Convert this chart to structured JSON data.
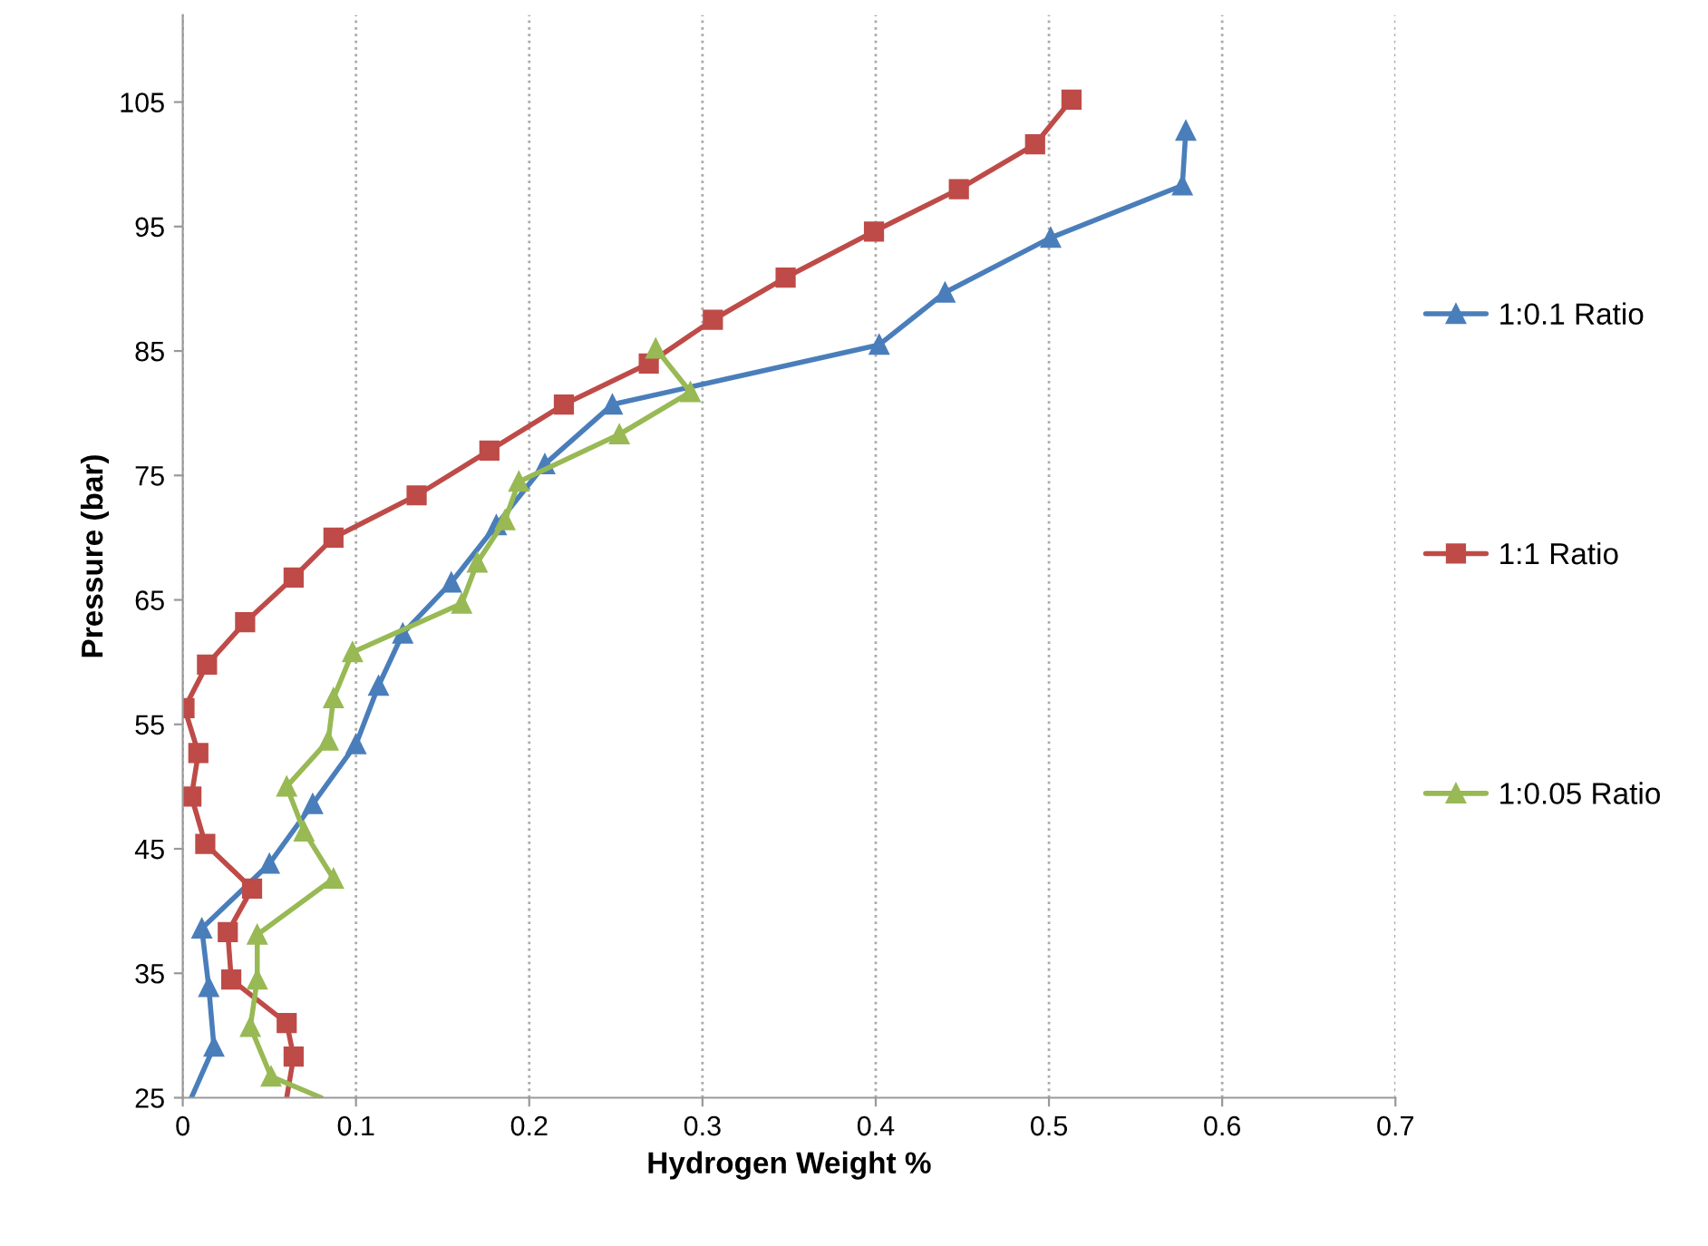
{
  "chart_data": {
    "type": "line",
    "xlabel": "Hydrogen Weight %",
    "ylabel": "Pressure (bar)",
    "xlim": [
      0,
      0.7
    ],
    "xticks": [
      0,
      0.1,
      0.2,
      0.3,
      0.4,
      0.5,
      0.6,
      0.7
    ],
    "ylim": [
      25,
      112
    ],
    "yticks": [
      25,
      35,
      45,
      55,
      65,
      75,
      85,
      95,
      105
    ],
    "grid": "x",
    "legend": "right",
    "line_style": "solid",
    "series": [
      {
        "name": "1:0.1 Ratio",
        "color": "#4a7ebb",
        "marker": "triangle",
        "x": [
          0.005,
          0.018,
          0.015,
          0.011,
          0.05,
          0.075,
          0.1,
          0.113,
          0.127,
          0.155,
          0.181,
          0.209,
          0.248,
          0.402,
          0.44,
          0.501,
          0.577,
          0.579
        ],
        "values": [
          25,
          29.1,
          33.9,
          38.6,
          43.8,
          48.6,
          53.4,
          58.1,
          62.3,
          66.4,
          71.0,
          75.9,
          80.7,
          85.5,
          89.7,
          94.1,
          98.3,
          102.7
        ]
      },
      {
        "name": "1:1 Ratio",
        "color": "#be4b48",
        "marker": "square",
        "x": [
          0.06,
          0.064,
          0.06,
          0.028,
          0.026,
          0.04,
          0.013,
          0.005,
          0.009,
          0.001,
          0.014,
          0.036,
          0.064,
          0.087,
          0.135,
          0.177,
          0.22,
          0.269,
          0.306,
          0.348,
          0.399,
          0.448,
          0.492,
          0.513
        ],
        "values": [
          25,
          28.3,
          31.0,
          34.5,
          38.3,
          41.8,
          45.4,
          49.2,
          52.7,
          56.3,
          59.8,
          63.2,
          66.8,
          70.0,
          73.4,
          77.0,
          80.7,
          84.0,
          87.5,
          90.9,
          94.6,
          98.0,
          101.6,
          105.2
        ]
      },
      {
        "name": "1:0.05 Ratio",
        "color": "#98b954",
        "marker": "triangle",
        "x": [
          0.08,
          0.051,
          0.039,
          0.043,
          0.043,
          0.087,
          0.07,
          0.06,
          0.084,
          0.087,
          0.098,
          0.161,
          0.17,
          0.186,
          0.194,
          0.252,
          0.293,
          0.273
        ],
        "values": [
          25,
          26.7,
          30.7,
          34.5,
          38.1,
          42.6,
          46.4,
          50.0,
          53.7,
          57.1,
          60.8,
          64.7,
          68.0,
          71.4,
          74.5,
          78.3,
          81.7,
          85.2
        ]
      }
    ]
  }
}
